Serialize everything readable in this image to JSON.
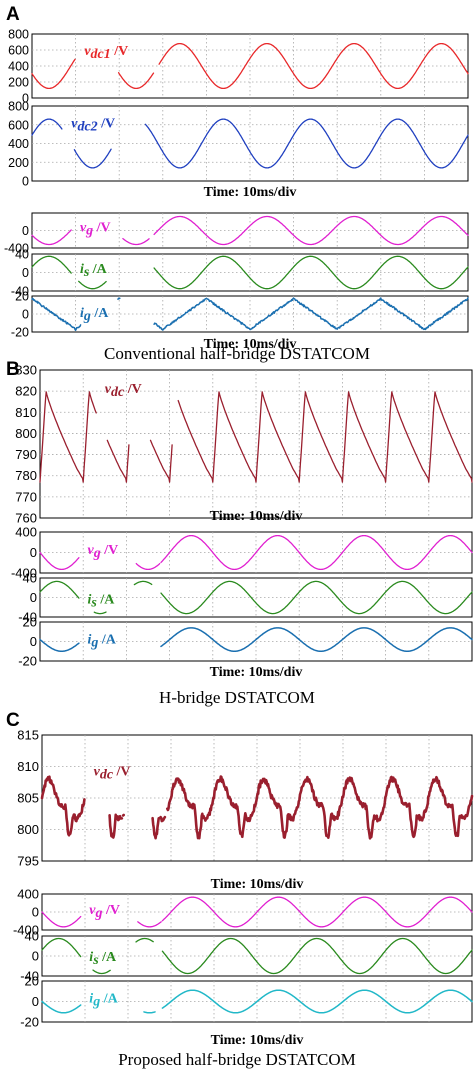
{
  "panels": [
    {
      "letter": "A",
      "time_label": "Time: 10ms/div",
      "caption": "Conventional half-bridge DSTATCOM",
      "groups": [
        {
          "time_label": "Time: 10ms/div",
          "subplots": [
            {
              "id": "a-vdc1",
              "color": "#e8282a",
              "name": "v",
              "sub": "dc1",
              "unit": " /V",
              "ylim": [
                0,
                800
              ],
              "yticks": [
                0,
                200,
                400,
                600,
                800
              ],
              "ticklabels": [
                "0",
                "200",
                "400",
                "600",
                "800"
              ]
            },
            {
              "id": "a-vdc2",
              "color": "#2040c0",
              "name": "v",
              "sub": "dc2",
              "unit": " /V",
              "ylim": [
                0,
                800
              ],
              "yticks": [
                0,
                200,
                400,
                600,
                800
              ],
              "ticklabels": [
                "0",
                "200",
                "400",
                "600",
                "800"
              ]
            }
          ]
        },
        {
          "time_label": "Time: 10ms/div",
          "subplots": [
            {
              "id": "a-vg",
              "color": "#e020d0",
              "name": "v",
              "sub": "g",
              "unit": " /V",
              "ylim": [
                -400,
                400
              ],
              "yticks": [
                -400,
                0,
                400
              ],
              "ticklabels": [
                "-400",
                "0",
                ""
              ]
            },
            {
              "id": "a-is",
              "color": "#2a8a1e",
              "name": "i",
              "sub": "s",
              "unit": " /A",
              "ylim": [
                -40,
                40
              ],
              "yticks": [
                -40,
                0,
                40
              ],
              "ticklabels": [
                "-40",
                "0",
                "40"
              ]
            },
            {
              "id": "a-ig",
              "color": "#1a6fb0",
              "name": "i",
              "sub": "g",
              "unit": " /A",
              "ylim": [
                -20,
                20
              ],
              "yticks": [
                -20,
                0,
                20
              ],
              "ticklabels": [
                "-20",
                "0",
                "20"
              ]
            }
          ]
        }
      ]
    },
    {
      "letter": "B",
      "caption": "H-bridge DSTATCOM",
      "groups": [
        {
          "time_label": "Time: 10ms/div",
          "subplots": [
            {
              "id": "b-vdc",
              "color": "#9a1f2e",
              "name": "v",
              "sub": "dc",
              "unit": " /V",
              "ylim": [
                760,
                830
              ],
              "yticks": [
                760,
                770,
                780,
                790,
                800,
                810,
                820,
                830
              ],
              "ticklabels": [
                "760",
                "770",
                "780",
                "790",
                "800",
                "810",
                "820",
                "830"
              ]
            }
          ]
        },
        {
          "time_label": "Time: 10ms/div",
          "subplots": [
            {
              "id": "b-vg",
              "color": "#e020d0",
              "name": "v",
              "sub": "g",
              "unit": " /V",
              "ylim": [
                -400,
                400
              ],
              "yticks": [
                -400,
                0,
                400
              ],
              "ticklabels": [
                "-400",
                "0",
                "400"
              ]
            },
            {
              "id": "b-is",
              "color": "#2a8a1e",
              "name": "i",
              "sub": "s",
              "unit": " /A",
              "ylim": [
                -40,
                40
              ],
              "yticks": [
                -40,
                0,
                40
              ],
              "ticklabels": [
                "-40",
                "0",
                "40"
              ]
            },
            {
              "id": "b-ig",
              "color": "#1a6fb0",
              "name": "i",
              "sub": "g",
              "unit": " /A",
              "ylim": [
                -20,
                20
              ],
              "yticks": [
                -20,
                0,
                20
              ],
              "ticklabels": [
                "-20",
                "0",
                "20"
              ]
            }
          ]
        }
      ]
    },
    {
      "letter": "C",
      "caption": "Proposed half-bridge DSTATCOM",
      "groups": [
        {
          "time_label": "Time: 10ms/div",
          "subplots": [
            {
              "id": "c-vdc",
              "color": "#9a1f2e",
              "name": "v",
              "sub": "dc",
              "unit": " /V",
              "ylim": [
                795,
                815
              ],
              "yticks": [
                795,
                800,
                805,
                810,
                815
              ],
              "ticklabels": [
                "795",
                "800",
                "805",
                "810",
                "815"
              ]
            }
          ]
        },
        {
          "time_label": "Time: 10ms/div",
          "subplots": [
            {
              "id": "c-vg",
              "color": "#e020d0",
              "name": "v",
              "sub": "g",
              "unit": " /V",
              "ylim": [
                -400,
                400
              ],
              "yticks": [
                -400,
                0,
                400
              ],
              "ticklabels": [
                "-400",
                "0",
                "400"
              ]
            },
            {
              "id": "c-is",
              "color": "#2a8a1e",
              "name": "i",
              "sub": "s",
              "unit": " /A",
              "ylim": [
                -40,
                40
              ],
              "yticks": [
                -40,
                0,
                40
              ],
              "ticklabels": [
                "-40",
                "0",
                "40"
              ]
            },
            {
              "id": "c-ig",
              "color": "#22b8c8",
              "name": "i",
              "sub": "g",
              "unit": " /A",
              "ylim": [
                -20,
                20
              ],
              "yticks": [
                -20,
                0,
                20
              ],
              "ticklabels": [
                "-20",
                "0",
                "20"
              ]
            }
          ]
        }
      ]
    }
  ],
  "chart_data": [
    {
      "type": "line",
      "panel": "A",
      "series": [
        {
          "name": "vdc1 /V",
          "model": "sine",
          "mean": 400,
          "amplitude": 280,
          "period_ms": 20,
          "phase_deg": 200
        }
      ],
      "ylim": [
        0,
        800
      ],
      "time_per_div_ms": 10
    },
    {
      "type": "line",
      "panel": "A",
      "series": [
        {
          "name": "vdc2 /V",
          "model": "sine",
          "mean": 400,
          "amplitude": 260,
          "period_ms": 20,
          "phase_deg": 20
        }
      ],
      "ylim": [
        0,
        800
      ],
      "time_per_div_ms": 10
    },
    {
      "type": "line",
      "panel": "A",
      "series": [
        {
          "name": "vg /V",
          "model": "sine",
          "mean": 0,
          "amplitude": 320,
          "period_ms": 20,
          "phase_deg": 200
        }
      ],
      "ylim": [
        -400,
        400
      ],
      "time_per_div_ms": 10
    },
    {
      "type": "line",
      "panel": "A",
      "series": [
        {
          "name": "is /A",
          "model": "sine",
          "mean": 0,
          "amplitude": 35,
          "period_ms": 20,
          "phase_deg": 20
        }
      ],
      "ylim": [
        -40,
        40
      ],
      "time_per_div_ms": 10
    },
    {
      "type": "line",
      "panel": "A",
      "series": [
        {
          "name": "ig /A",
          "model": "triangle",
          "mean": 0,
          "amplitude": 17,
          "period_ms": 20,
          "phase_deg": 180
        }
      ],
      "ylim": [
        -20,
        20
      ],
      "time_per_div_ms": 10
    },
    {
      "type": "line",
      "panel": "B",
      "series": [
        {
          "name": "vdc /V",
          "model": "sawtooth",
          "mean": 797,
          "min": 777,
          "max": 820,
          "period_ms": 10
        }
      ],
      "ylim": [
        760,
        830
      ],
      "time_per_div_ms": 10
    },
    {
      "type": "line",
      "panel": "B",
      "series": [
        {
          "name": "vg /V",
          "model": "sine",
          "mean": 0,
          "amplitude": 330,
          "period_ms": 20,
          "phase_deg": 180
        }
      ],
      "ylim": [
        -400,
        400
      ],
      "time_per_div_ms": 10
    },
    {
      "type": "line",
      "panel": "B",
      "series": [
        {
          "name": "is /A",
          "model": "sine",
          "mean": 0,
          "amplitude": 33,
          "period_ms": 20,
          "phase_deg": 20
        }
      ],
      "ylim": [
        -40,
        40
      ],
      "time_per_div_ms": 10
    },
    {
      "type": "line",
      "panel": "B",
      "series": [
        {
          "name": "ig /A",
          "model": "sine",
          "mean": 2,
          "amplitude": 12,
          "period_ms": 20,
          "phase_deg": 180
        }
      ],
      "ylim": [
        -20,
        20
      ],
      "time_per_div_ms": 10
    },
    {
      "type": "line",
      "panel": "C",
      "series": [
        {
          "name": "vdc /V",
          "model": "ripple",
          "mean": 804.5,
          "min": 799,
          "max": 808,
          "period_ms": 10
        }
      ],
      "ylim": [
        795,
        815
      ],
      "time_per_div_ms": 10
    },
    {
      "type": "line",
      "panel": "C",
      "series": [
        {
          "name": "vg /V",
          "model": "sine",
          "mean": 0,
          "amplitude": 330,
          "period_ms": 20,
          "phase_deg": 180
        }
      ],
      "ylim": [
        -400,
        400
      ],
      "time_per_div_ms": 10
    },
    {
      "type": "line",
      "panel": "C",
      "series": [
        {
          "name": "is /A",
          "model": "sine",
          "mean": 0,
          "amplitude": 35,
          "period_ms": 20,
          "phase_deg": 20
        }
      ],
      "ylim": [
        -40,
        40
      ],
      "time_per_div_ms": 10
    },
    {
      "type": "line",
      "panel": "C",
      "series": [
        {
          "name": "ig /A",
          "model": "sine",
          "mean": 0,
          "amplitude": 11,
          "period_ms": 20,
          "phase_deg": 180
        }
      ],
      "ylim": [
        -20,
        20
      ],
      "time_per_div_ms": 10
    }
  ]
}
